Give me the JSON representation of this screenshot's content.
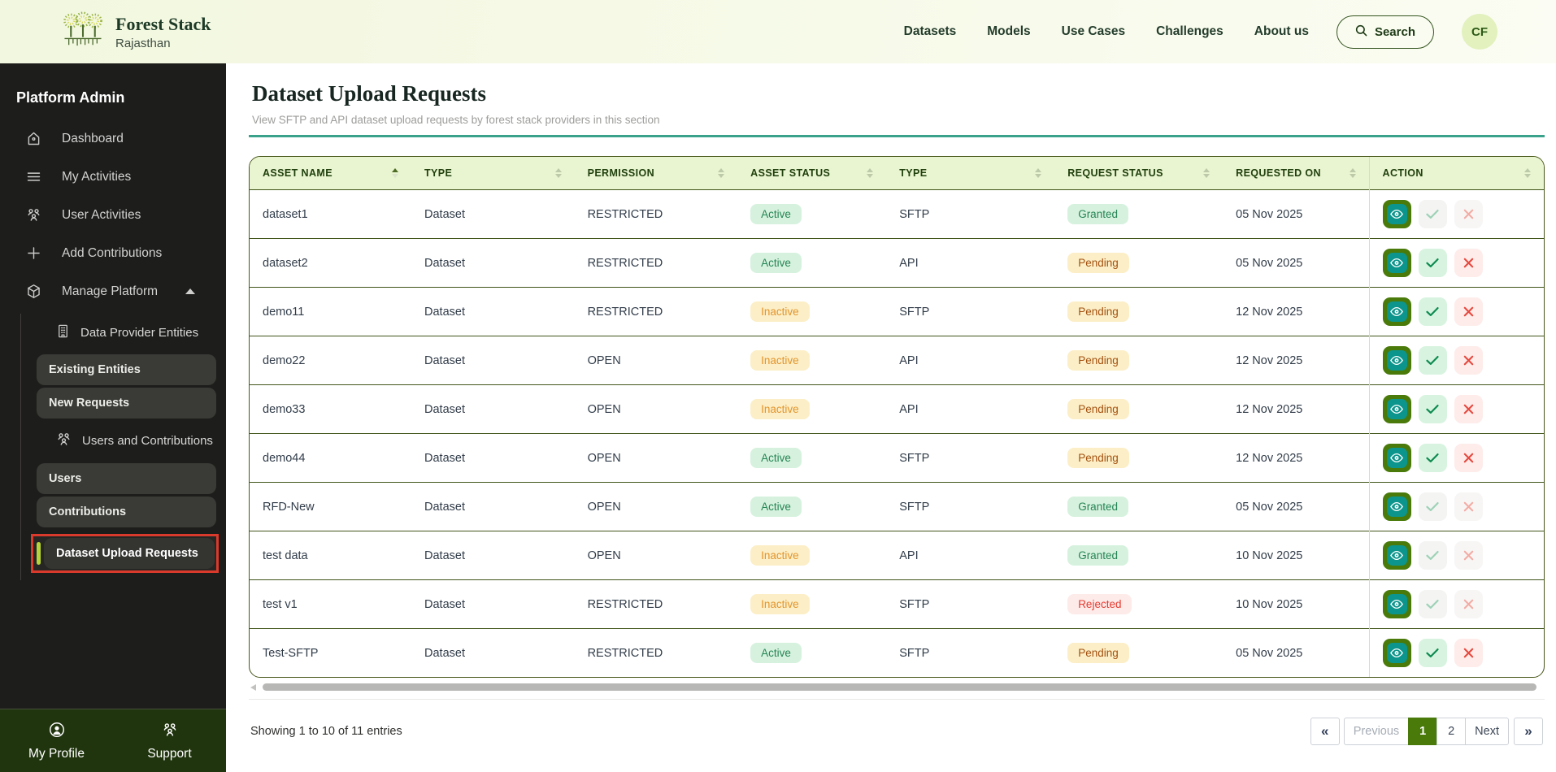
{
  "header": {
    "brand": {
      "title": "Forest Stack",
      "subtitle": "Rajasthan"
    },
    "nav": [
      {
        "label": "Datasets"
      },
      {
        "label": "Models"
      },
      {
        "label": "Use Cases"
      },
      {
        "label": "Challenges"
      },
      {
        "label": "About us"
      }
    ],
    "search_label": "Search",
    "avatar_initials": "CF"
  },
  "sidebar": {
    "title": "Platform Admin",
    "items": [
      {
        "label": "Dashboard",
        "icon": "home"
      },
      {
        "label": "My Activities",
        "icon": "menu"
      },
      {
        "label": "User Activities",
        "icon": "users"
      },
      {
        "label": "Add Contributions",
        "icon": "plus"
      },
      {
        "label": "Manage Platform",
        "icon": "cube",
        "expanded": true
      }
    ],
    "submenu": [
      {
        "type": "header",
        "label": "Data Provider Entities",
        "icon": "building"
      },
      {
        "type": "pill",
        "label": "Existing Entities"
      },
      {
        "type": "pill",
        "label": "New Requests"
      },
      {
        "type": "header",
        "label": "Users and Contributions",
        "icon": "users"
      },
      {
        "type": "pill",
        "label": "Users"
      },
      {
        "type": "pill",
        "label": "Contributions"
      },
      {
        "type": "pill",
        "label": "Dataset Upload Requests",
        "active": true,
        "highlighted": true
      }
    ],
    "footer": [
      {
        "label": "My Profile",
        "icon": "profile"
      },
      {
        "label": "Support",
        "icon": "support"
      }
    ]
  },
  "main": {
    "title": "Dataset Upload Requests",
    "subtitle": "View SFTP and API dataset upload requests by forest stack providers in this section",
    "table": {
      "columns": [
        "ASSET NAME",
        "TYPE",
        "PERMISSION",
        "ASSET STATUS",
        "TYPE",
        "REQUEST STATUS",
        "REQUESTED ON",
        "ACTION"
      ],
      "sorted_column": "ASSET NAME",
      "sort_direction": "asc",
      "rows": [
        {
          "asset_name": "dataset1",
          "type": "Dataset",
          "permission": "RESTRICTED",
          "asset_status": "Active",
          "channel": "SFTP",
          "request_status": "Granted",
          "requested_on": "05 Nov 2025",
          "actions_enabled": false
        },
        {
          "asset_name": "dataset2",
          "type": "Dataset",
          "permission": "RESTRICTED",
          "asset_status": "Active",
          "channel": "API",
          "request_status": "Pending",
          "requested_on": "05 Nov 2025",
          "actions_enabled": true
        },
        {
          "asset_name": "demo11",
          "type": "Dataset",
          "permission": "RESTRICTED",
          "asset_status": "Inactive",
          "channel": "SFTP",
          "request_status": "Pending",
          "requested_on": "12 Nov 2025",
          "actions_enabled": true
        },
        {
          "asset_name": "demo22",
          "type": "Dataset",
          "permission": "OPEN",
          "asset_status": "Inactive",
          "channel": "API",
          "request_status": "Pending",
          "requested_on": "12 Nov 2025",
          "actions_enabled": true
        },
        {
          "asset_name": "demo33",
          "type": "Dataset",
          "permission": "OPEN",
          "asset_status": "Inactive",
          "channel": "API",
          "request_status": "Pending",
          "requested_on": "12 Nov 2025",
          "actions_enabled": true
        },
        {
          "asset_name": "demo44",
          "type": "Dataset",
          "permission": "OPEN",
          "asset_status": "Active",
          "channel": "SFTP",
          "request_status": "Pending",
          "requested_on": "12 Nov 2025",
          "actions_enabled": true
        },
        {
          "asset_name": "RFD-New",
          "type": "Dataset",
          "permission": "OPEN",
          "asset_status": "Active",
          "channel": "SFTP",
          "request_status": "Granted",
          "requested_on": "05 Nov 2025",
          "actions_enabled": false
        },
        {
          "asset_name": "test data",
          "type": "Dataset",
          "permission": "OPEN",
          "asset_status": "Inactive",
          "channel": "API",
          "request_status": "Granted",
          "requested_on": "10 Nov 2025",
          "actions_enabled": false
        },
        {
          "asset_name": "test v1",
          "type": "Dataset",
          "permission": "RESTRICTED",
          "asset_status": "Inactive",
          "channel": "SFTP",
          "request_status": "Rejected",
          "requested_on": "10 Nov 2025",
          "actions_enabled": false
        },
        {
          "asset_name": "Test-SFTP",
          "type": "Dataset",
          "permission": "RESTRICTED",
          "asset_status": "Active",
          "channel": "SFTP",
          "request_status": "Pending",
          "requested_on": "05 Nov 2025",
          "actions_enabled": true
        }
      ]
    },
    "footer": {
      "showing_text": "Showing 1 to 10 of 11 entries",
      "pagination": {
        "first": "«",
        "previous": "Previous",
        "pages": [
          "1",
          "2"
        ],
        "active_page": "1",
        "next": "Next",
        "last": "»"
      }
    }
  },
  "colors": {
    "brand_green": "#2d5a17",
    "accent_teal": "#3aa28b",
    "table_header_bg": "#e9f4d0",
    "row_border": "#41551a",
    "badge_green_bg": "#d6f2de",
    "badge_green_text": "#268455",
    "badge_amber_bg": "#fcefc7",
    "badge_inactive_text": "#e2942c",
    "badge_pending_text": "#a3500f",
    "badge_red_bg": "#fdebe9",
    "badge_red_text": "#e63b31",
    "eye_button_outer": "#497a0a",
    "eye_button_inner": "#0c958c",
    "active_page_bg": "#497a0a",
    "sidebar_bg": "#1d1d1b",
    "sidebar_footer_bg": "#20350e",
    "highlight_red": "#d93a2b",
    "accent_yellow_green": "#b5d438"
  }
}
